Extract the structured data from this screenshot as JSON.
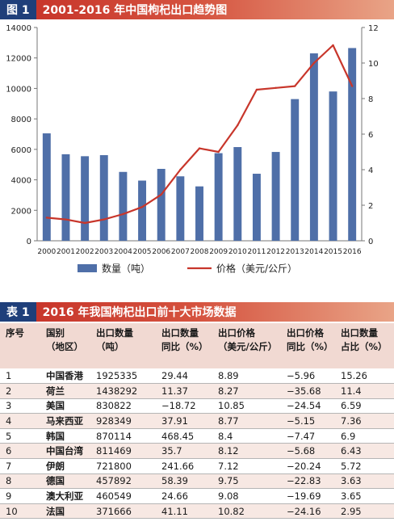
{
  "figure": {
    "tag": "图 1",
    "title": "2001-2016 年中国枸杞出口趋势图"
  },
  "chart_data": {
    "type": "bar",
    "categories": [
      "2000",
      "2001",
      "2002",
      "2003",
      "2004",
      "2005",
      "2006",
      "2007",
      "2008",
      "2009",
      "2010",
      "2011",
      "2012",
      "2013",
      "2014",
      "2015",
      "2016"
    ],
    "series": [
      {
        "name": "数量（吨）",
        "type": "bar",
        "axis": "left",
        "values": [
          7050,
          5680,
          5550,
          5620,
          4520,
          3950,
          4720,
          4230,
          3570,
          5750,
          6150,
          4400,
          5830,
          9300,
          12300,
          9800,
          12650
        ]
      },
      {
        "name": "价格（美元/公斤）",
        "type": "line",
        "axis": "right",
        "values": [
          1.3,
          1.2,
          1.0,
          1.2,
          1.5,
          1.9,
          2.6,
          4.0,
          5.2,
          5.0,
          6.5,
          8.5,
          8.6,
          8.7,
          10.0,
          11.0,
          8.7
        ]
      }
    ],
    "left_axis": {
      "ticks": [
        0,
        2000,
        4000,
        6000,
        8000,
        10000,
        12000,
        14000
      ],
      "ylim": [
        0,
        14000
      ]
    },
    "right_axis": {
      "ticks": [
        0,
        2,
        4,
        6,
        8,
        10,
        12
      ],
      "ylim": [
        0,
        12
      ]
    },
    "grid": false,
    "legend": "bottom",
    "colors": {
      "bar": "#4f6fa8",
      "line": "#c8362b"
    }
  },
  "table": {
    "tag": "表 1",
    "title": "2016 年我国枸杞出口前十大市场数据",
    "headers": [
      [
        "序号"
      ],
      [
        "国别",
        "（地区）"
      ],
      [
        "出口数量",
        "（吨）"
      ],
      [
        "出口数量",
        "同比（%）"
      ],
      [
        "出口价格",
        "（美元/公斤）"
      ],
      [
        "出口价格",
        "同比（%）"
      ],
      [
        "出口数量",
        "占比（%）"
      ]
    ],
    "rows": [
      [
        "1",
        "中国香港",
        "1925335",
        "29.44",
        "8.89",
        "−5.96",
        "15.26"
      ],
      [
        "2",
        "荷兰",
        "1438292",
        "11.37",
        "8.27",
        "−35.68",
        "11.4"
      ],
      [
        "3",
        "美国",
        "830822",
        "−18.72",
        "10.85",
        "−24.54",
        "6.59"
      ],
      [
        "4",
        "马来西亚",
        "928349",
        "37.91",
        "8.77",
        "−5.15",
        "7.36"
      ],
      [
        "5",
        "韩国",
        "870114",
        "468.45",
        "8.4",
        "−7.47",
        "6.9"
      ],
      [
        "6",
        "中国台湾",
        "811469",
        "35.7",
        "8.12",
        "−5.68",
        "6.43"
      ],
      [
        "7",
        "伊朗",
        "721800",
        "241.66",
        "7.12",
        "−20.24",
        "5.72"
      ],
      [
        "8",
        "德国",
        "457892",
        "58.39",
        "9.75",
        "−22.83",
        "3.63"
      ],
      [
        "9",
        "澳大利亚",
        "460549",
        "24.66",
        "9.08",
        "−19.69",
        "3.65"
      ],
      [
        "10",
        "法国",
        "371666",
        "41.11",
        "10.82",
        "−24.16",
        "2.95"
      ]
    ]
  }
}
